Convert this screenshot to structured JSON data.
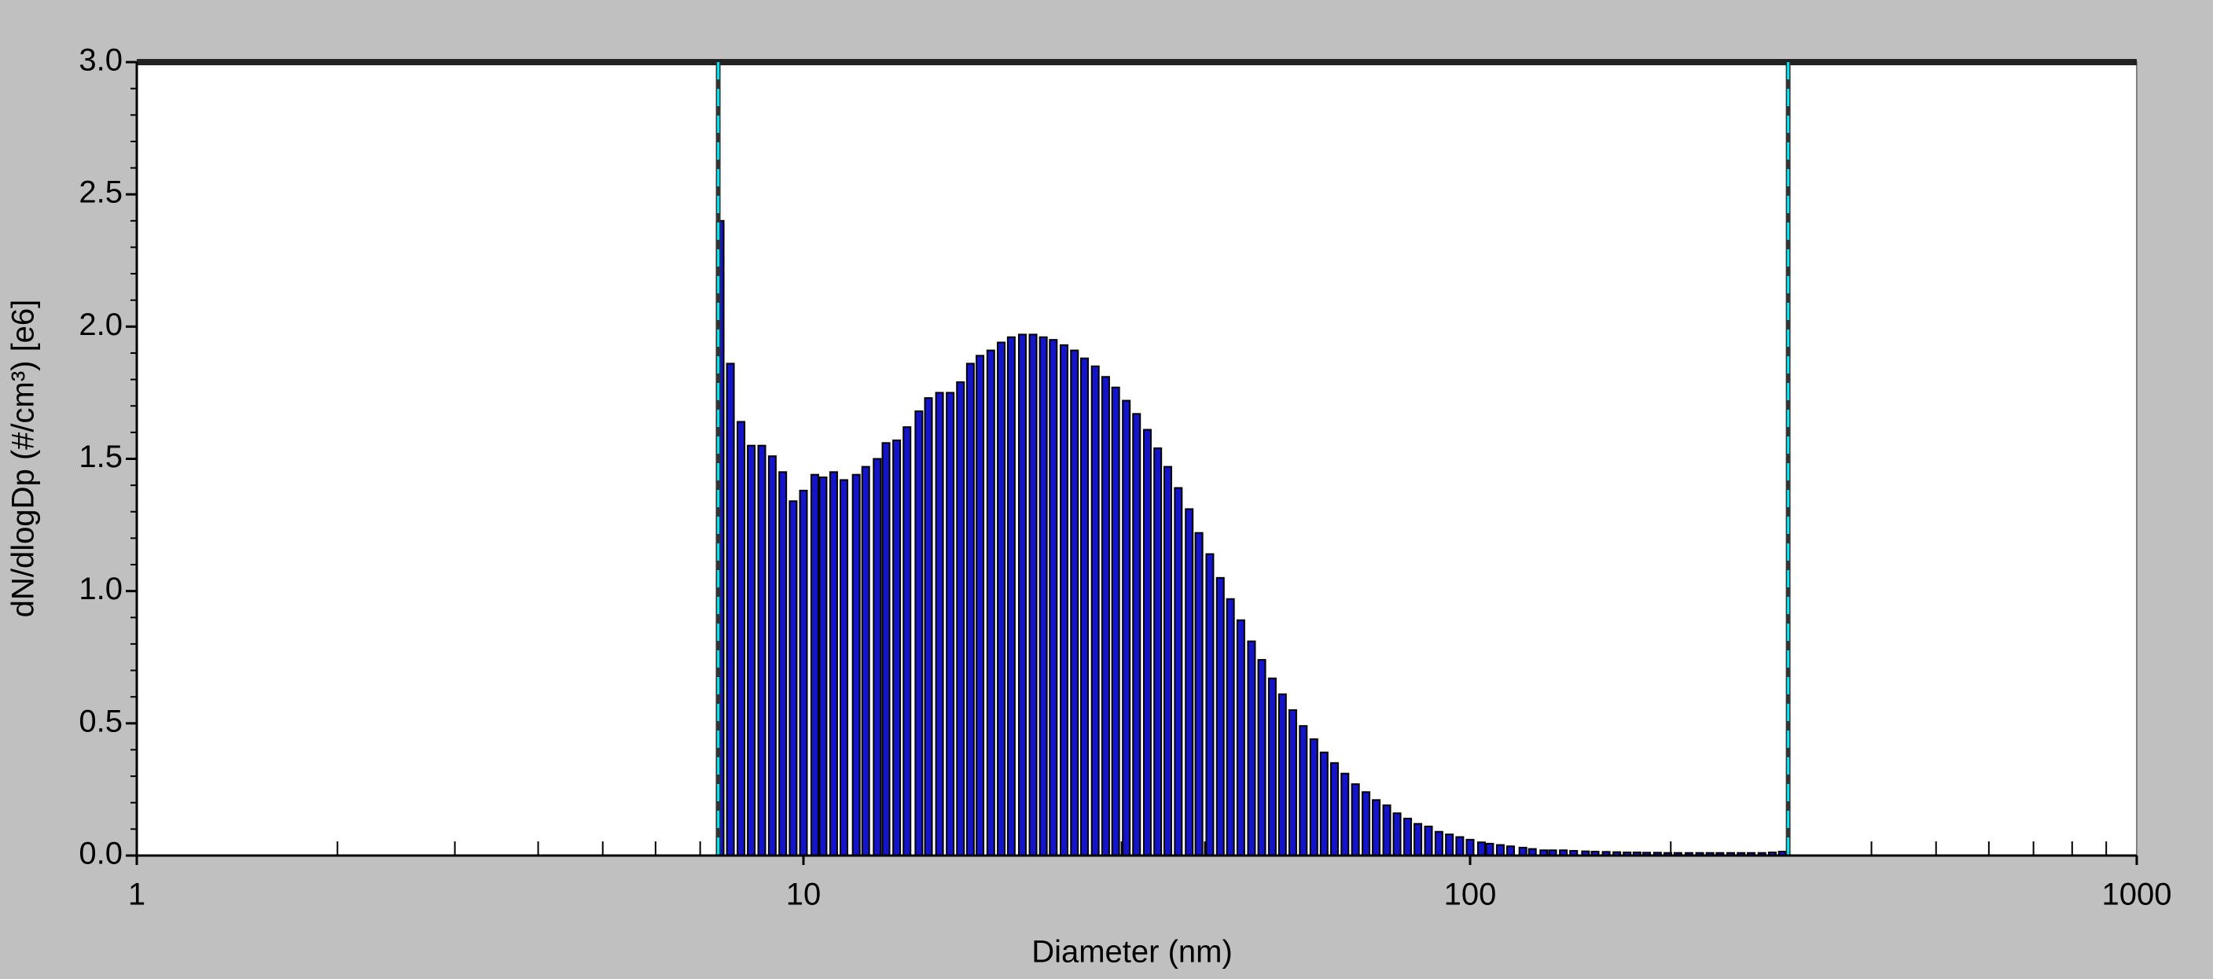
{
  "chart_data": {
    "type": "bar",
    "xlabel": "Diameter (nm)",
    "ylabel": "dN/dlogDp (#/cm³) [e6]",
    "xscale": "log",
    "xlim": [
      1,
      1000
    ],
    "xticks": [
      1,
      10,
      100,
      1000
    ],
    "xminorticks": [
      2,
      3,
      4,
      5,
      6,
      7,
      8,
      9,
      20,
      30,
      40,
      50,
      60,
      70,
      80,
      90,
      200,
      300,
      400,
      500,
      600,
      700,
      800,
      900
    ],
    "ylim": [
      0,
      3
    ],
    "yticks": [
      {
        "value": 0,
        "label": "0.0"
      },
      0.5,
      {
        "value": 1,
        "label": "1.0"
      },
      1.5,
      {
        "value": 2,
        "label": "2.0"
      },
      2.5,
      {
        "value": 3,
        "label": "3.0"
      }
    ],
    "yminorticks": [
      0.1,
      0.2,
      0.3,
      0.4,
      0.6,
      0.7,
      0.8,
      0.9,
      1.1,
      1.2,
      1.3,
      1.4,
      1.6,
      1.7,
      1.8,
      1.9,
      2.1,
      2.2,
      2.3,
      2.4,
      2.6,
      2.7,
      2.8,
      2.9
    ],
    "color": "#1414c8",
    "cursors": [
      7.45,
      300
    ],
    "cursor_color": "#00e5f0",
    "x": [
      7.5,
      7.77,
      8.06,
      8.35,
      8.66,
      8.98,
      9.31,
      9.65,
      10.0,
      10.4,
      10.7,
      11.1,
      11.5,
      12.0,
      12.4,
      12.9,
      13.3,
      13.8,
      14.3,
      14.9,
      15.4,
      16.0,
      16.6,
      17.2,
      17.8,
      18.4,
      19.1,
      19.8,
      20.5,
      21.3,
      22.1,
      22.9,
      23.7,
      24.6,
      25.5,
      26.4,
      27.4,
      28.4,
      29.4,
      30.5,
      31.6,
      32.8,
      34.0,
      35.2,
      36.5,
      37.9,
      39.2,
      40.7,
      42.2,
      43.7,
      45.3,
      47.0,
      48.7,
      50.5,
      52.3,
      54.2,
      56.2,
      58.3,
      60.4,
      62.6,
      64.9,
      67.3,
      69.8,
      72.3,
      75.0,
      77.7,
      80.6,
      83.5,
      86.6,
      89.8,
      93.1,
      96.5,
      100,
      104,
      107,
      111,
      115,
      120,
      124,
      129,
      133,
      138,
      143,
      149,
      154,
      160,
      166,
      172,
      178,
      184,
      191,
      198,
      205,
      213,
      221,
      229,
      237,
      246,
      255,
      264,
      274,
      284,
      294
    ],
    "values": [
      2.4,
      1.86,
      1.64,
      1.55,
      1.55,
      1.51,
      1.45,
      1.34,
      1.38,
      1.44,
      1.43,
      1.45,
      1.42,
      1.44,
      1.47,
      1.5,
      1.56,
      1.57,
      1.62,
      1.68,
      1.73,
      1.75,
      1.75,
      1.79,
      1.86,
      1.89,
      1.91,
      1.94,
      1.96,
      1.97,
      1.97,
      1.96,
      1.95,
      1.93,
      1.91,
      1.88,
      1.85,
      1.81,
      1.77,
      1.72,
      1.67,
      1.61,
      1.54,
      1.47,
      1.39,
      1.31,
      1.22,
      1.14,
      1.05,
      0.97,
      0.89,
      0.81,
      0.74,
      0.67,
      0.61,
      0.55,
      0.49,
      0.44,
      0.39,
      0.35,
      0.31,
      0.27,
      0.24,
      0.21,
      0.19,
      0.16,
      0.14,
      0.12,
      0.11,
      0.09,
      0.08,
      0.07,
      0.06,
      0.05,
      0.045,
      0.04,
      0.035,
      0.03,
      0.025,
      0.02,
      0.02,
      0.02,
      0.018,
      0.016,
      0.015,
      0.014,
      0.013,
      0.012,
      0.012,
      0.011,
      0.011,
      0.01,
      0.01,
      0.01,
      0.01,
      0.01,
      0.01,
      0.01,
      0.01,
      0.01,
      0.01,
      0.012,
      0.015
    ]
  }
}
